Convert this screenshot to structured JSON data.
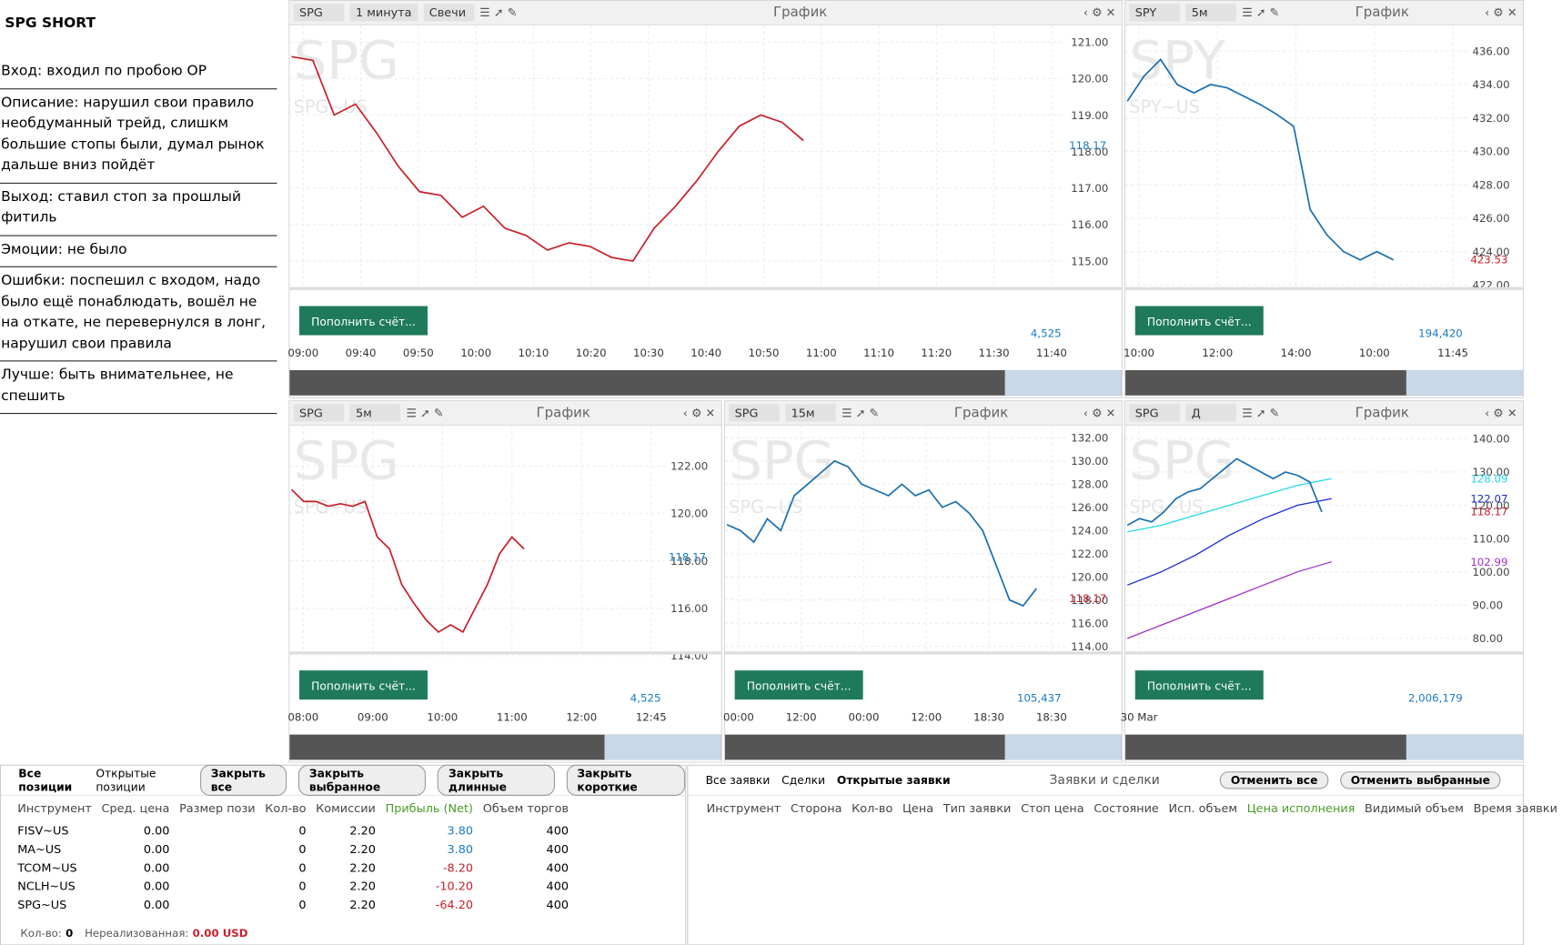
{
  "notes": {
    "title": "SPG SHORT",
    "items": [
      "Вход: входил по пробою ОР",
      "Описание: нарушил свои правило необдуманный трейд, слишкм большие стопы были, думал рынок дальше вниз пойдёт",
      "Выход: ставил стоп за прошлый фитиль",
      "Эмоции: не было",
      "Ошибки: поспешил с входом, надо было ещё понаблюдать, вошёл не на откате, не перевернулся в лонг, нарушил свои правила",
      "Лучше: быть внимательнее, не спешить"
    ]
  },
  "charts": [
    {
      "symbol": "SPG",
      "interval": "1 минута",
      "style": "Свечи",
      "label": "График",
      "watermark": "SPG",
      "watermark_sub": "SPG~US",
      "color": "#c8202a",
      "ylim": [
        114.3,
        121.3
      ],
      "yticks": [
        {
          "value": 121,
          "label": "121.00"
        },
        {
          "value": 120,
          "label": "120.00"
        },
        {
          "value": 119,
          "label": "119.00"
        },
        {
          "value": 118,
          "label": "118.00"
        },
        {
          "value": 117,
          "label": "117.00"
        },
        {
          "value": 116,
          "label": "116.00"
        },
        {
          "value": 115,
          "label": "115.00"
        }
      ],
      "xticks": [
        "09:00",
        "09:40",
        "09:50",
        "10:00",
        "10:10",
        "10:20",
        "10:30",
        "10:40",
        "10:50",
        "11:00",
        "11:10",
        "11:20",
        "11:30",
        "11:40"
      ],
      "closes": [
        120.6,
        120.5,
        119.0,
        119.3,
        118.5,
        117.6,
        116.9,
        116.8,
        116.2,
        116.5,
        115.9,
        115.7,
        115.3,
        115.5,
        115.4,
        115.1,
        115.0,
        115.9,
        116.5,
        117.2,
        118.0,
        118.7,
        119.0,
        118.8,
        118.3
      ],
      "price_label": "118.17",
      "price_color": "#1a7ac4",
      "volume_label": "4,525",
      "deposit_button": "Пополнить счёт..."
    },
    {
      "symbol": "SPY",
      "interval": "5м",
      "label": "График",
      "watermark": "SPY",
      "watermark_sub": "SPY~US",
      "color": "#1a6fb0",
      "ylim": [
        421.9,
        437.2
      ],
      "yticks": [
        {
          "value": 436,
          "label": "436.00"
        },
        {
          "value": 434,
          "label": "434.00"
        },
        {
          "value": 432,
          "label": "432.00"
        },
        {
          "value": 430,
          "label": "430.00"
        },
        {
          "value": 428,
          "label": "428.00"
        },
        {
          "value": 426,
          "label": "426.00"
        },
        {
          "value": 424,
          "label": "424.00"
        },
        {
          "value": 422,
          "label": "422.00"
        }
      ],
      "xticks": [
        "10:00",
        "12:00",
        "14:00",
        "10:00",
        "11:45"
      ],
      "closes": [
        433,
        434.5,
        435.5,
        434,
        433.5,
        434,
        433.8,
        433.3,
        432.8,
        432.2,
        431.5,
        426.5,
        425,
        424,
        423.5,
        424,
        423.5
      ],
      "price_label": "423.53",
      "price_color": "#c8202a",
      "volume_label": "194,420",
      "deposit_button": "Пополнить счёт..."
    },
    {
      "symbol": "SPG",
      "interval": "5м",
      "label": "График",
      "watermark": "SPG",
      "watermark_sub": "SPG~US",
      "color": "#c8202a",
      "ylim": [
        114.2,
        123.45
      ],
      "yticks": [
        {
          "value": 122,
          "label": "122.00"
        },
        {
          "value": 120,
          "label": "120.00"
        },
        {
          "value": 118,
          "label": "118.00"
        },
        {
          "value": 116,
          "label": "116.00"
        },
        {
          "value": 114,
          "label": "114.00"
        }
      ],
      "xticks": [
        "08:00",
        "09:00",
        "10:00",
        "11:00",
        "12:00",
        "12:45"
      ],
      "closes": [
        121,
        120.5,
        120.5,
        120.3,
        120.4,
        120.3,
        120.5,
        119,
        118.5,
        117,
        116.2,
        115.5,
        115,
        115.3,
        115,
        116,
        117,
        118.3,
        119,
        118.5
      ],
      "price_label": "118.17",
      "price_color": "#1a7ac4",
      "volume_label": "4,525",
      "deposit_button": "Пополнить счёт..."
    },
    {
      "symbol": "SPG",
      "interval": "15м",
      "label": "График",
      "watermark": "SPG",
      "watermark_sub": "SPG~US",
      "color": "#1a6fb0",
      "ylim": [
        113.6,
        132.55
      ],
      "yticks": [
        {
          "value": 132,
          "label": "132.00"
        },
        {
          "value": 130,
          "label": "130.00"
        },
        {
          "value": 128,
          "label": "128.00"
        },
        {
          "value": 126,
          "label": "126.00"
        },
        {
          "value": 124,
          "label": "124.00"
        },
        {
          "value": 122,
          "label": "122.00"
        },
        {
          "value": 120,
          "label": "120.00"
        },
        {
          "value": 118,
          "label": "118.00"
        },
        {
          "value": 116,
          "label": "116.00"
        },
        {
          "value": 114,
          "label": "114.00"
        }
      ],
      "xticks": [
        "00:00",
        "12:00",
        "00:00",
        "12:00",
        "18:30",
        "18:30"
      ],
      "closes": [
        124.5,
        124,
        123,
        125,
        124,
        127,
        128,
        129,
        130,
        129.5,
        128,
        127.5,
        127,
        128,
        127,
        127.5,
        126,
        126.5,
        125.5,
        124,
        121,
        118,
        117.5,
        119
      ],
      "price_label": "118.17",
      "price_color": "#c8202a",
      "volume_label": "105,437",
      "deposit_button": "Пополнить счёт..."
    },
    {
      "symbol": "SPG",
      "interval": "Д",
      "label": "График",
      "watermark": "SPG",
      "watermark_sub": "SPG~US",
      "color": "#1a6fb0",
      "ylim": [
        76.2,
        142.2
      ],
      "yticks": [
        {
          "value": 140,
          "label": "140.00"
        },
        {
          "value": 130,
          "label": "130.00"
        },
        {
          "value": 120,
          "label": "120.00"
        },
        {
          "value": 110,
          "label": "110.00"
        },
        {
          "value": 100,
          "label": "100.00"
        },
        {
          "value": 90,
          "label": "90.00"
        },
        {
          "value": 80,
          "label": "80.00"
        }
      ],
      "xticks": [
        "30 Mar"
      ],
      "closes": [
        114,
        116,
        115,
        118,
        122,
        124,
        125,
        128,
        131,
        134,
        132,
        130,
        128,
        130,
        129,
        127,
        118
      ],
      "ma": [
        {
          "color": "#22d8e8",
          "values": [
            112,
            114,
            117,
            120,
            123,
            126,
            128
          ],
          "label": "128.09"
        },
        {
          "color": "#1a2ad0",
          "values": [
            96,
            100,
            105,
            111,
            116,
            120,
            122
          ],
          "label": "122.07"
        },
        {
          "color": "#a030c8",
          "values": [
            80,
            84,
            88,
            92,
            96,
            100,
            103
          ],
          "label": "102.99"
        }
      ],
      "price_label": "118.17",
      "price_color": "#c8202a",
      "volume_label": "2,006,179",
      "deposit_button": "Пополнить счёт..."
    }
  ],
  "positions": {
    "tabs": [
      "Все позиции",
      "Открытые позиции"
    ],
    "buttons": [
      "Закрыть все",
      "Закрыть выбранное",
      "Закрыть длинные",
      "Закрыть короткие"
    ],
    "columns": [
      "Инструмент",
      "Сред. цена",
      "Размер пози",
      "Кол-во",
      "Комиссии",
      "Прибыль (Net)",
      "Объем торгов"
    ],
    "rows": [
      {
        "instrument": "FISV~US",
        "avg_price": "0.00",
        "qty": "0",
        "commission": "2.20",
        "profit": "3.80",
        "volume": "400"
      },
      {
        "instrument": "MA~US",
        "avg_price": "0.00",
        "qty": "0",
        "commission": "2.20",
        "profit": "3.80",
        "volume": "400"
      },
      {
        "instrument": "TCOM~US",
        "avg_price": "0.00",
        "qty": "0",
        "commission": "2.20",
        "profit": "-8.20",
        "volume": "400"
      },
      {
        "instrument": "NCLH~US",
        "avg_price": "0.00",
        "qty": "0",
        "commission": "2.20",
        "profit": "-10.20",
        "volume": "400"
      },
      {
        "instrument": "SPG~US",
        "avg_price": "0.00",
        "qty": "0",
        "commission": "2.20",
        "profit": "-64.20",
        "volume": "400"
      }
    ],
    "footer": {
      "qty_label": "Кол-во:",
      "qty": "0",
      "unrealized_label": "Нереализованная:",
      "unrealized": "0.00 USD"
    }
  },
  "orders": {
    "tabs": [
      "Все заявки",
      "Сделки",
      "Открытые заявки"
    ],
    "title": "Заявки и сделки",
    "buttons": [
      "Отменить все",
      "Отменить выбранные"
    ],
    "columns": [
      "Инструмент",
      "Сторона",
      "Кол-во",
      "Цена",
      "Тип заявки",
      "Стоп цена",
      "Состояние",
      "Исп. объем",
      "Цена исполнения",
      "Видимый объем",
      "Время заявки"
    ]
  }
}
